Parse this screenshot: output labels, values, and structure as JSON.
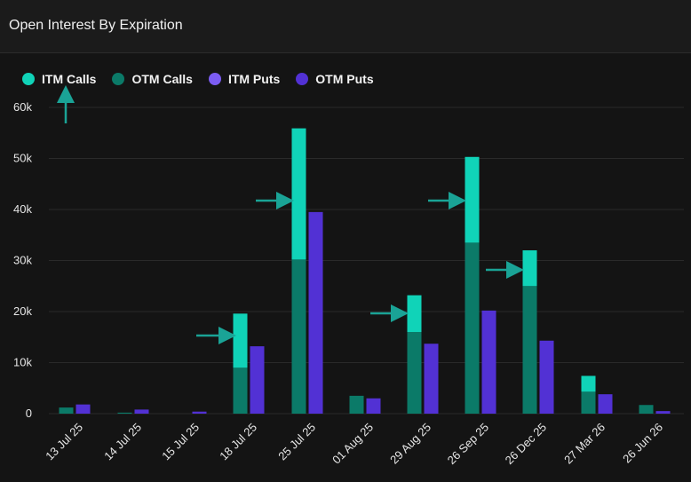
{
  "title": "Open Interest By Expiration",
  "legend": [
    {
      "label": "ITM Calls",
      "color": "#10d3b8"
    },
    {
      "label": "OTM Calls",
      "color": "#0b7a68"
    },
    {
      "label": "ITM Puts",
      "color": "#7b5cf2"
    },
    {
      "label": "OTM Puts",
      "color": "#5231d4"
    }
  ],
  "chart_data": {
    "type": "bar",
    "stacked": true,
    "categories": [
      "13 Jul 25",
      "14 Jul 25",
      "15 Jul 25",
      "18 Jul 25",
      "25 Jul 25",
      "01 Aug 25",
      "29 Aug 25",
      "26 Sep 25",
      "26 Dec 25",
      "27 Mar 26",
      "26 Jun 26"
    ],
    "series": [
      {
        "name": "OTM Calls",
        "group": "calls",
        "color": "#0b7a68",
        "values": [
          1200,
          200,
          0,
          9000,
          30200,
          3500,
          16000,
          33500,
          25000,
          4300,
          1700
        ]
      },
      {
        "name": "ITM Calls",
        "group": "calls",
        "color": "#10d3b8",
        "values": [
          0,
          0,
          0,
          10600,
          25700,
          0,
          7200,
          16800,
          7000,
          3100,
          0
        ]
      },
      {
        "name": "OTM Puts",
        "group": "puts",
        "color": "#5231d4",
        "values": [
          1800,
          800,
          400,
          13200,
          39500,
          3000,
          13700,
          20200,
          14300,
          3800,
          500
        ]
      },
      {
        "name": "ITM Puts",
        "group": "puts",
        "color": "#7b5cf2",
        "values": [
          0,
          0,
          0,
          0,
          0,
          0,
          0,
          0,
          0,
          0,
          0
        ]
      }
    ],
    "yticks": [
      "0",
      "10k",
      "20k",
      "30k",
      "40k",
      "50k",
      "60k"
    ],
    "ylim": [
      0,
      60000
    ],
    "grid": true,
    "legend_position": "top-left",
    "arrow_colors": "#1aa396"
  }
}
